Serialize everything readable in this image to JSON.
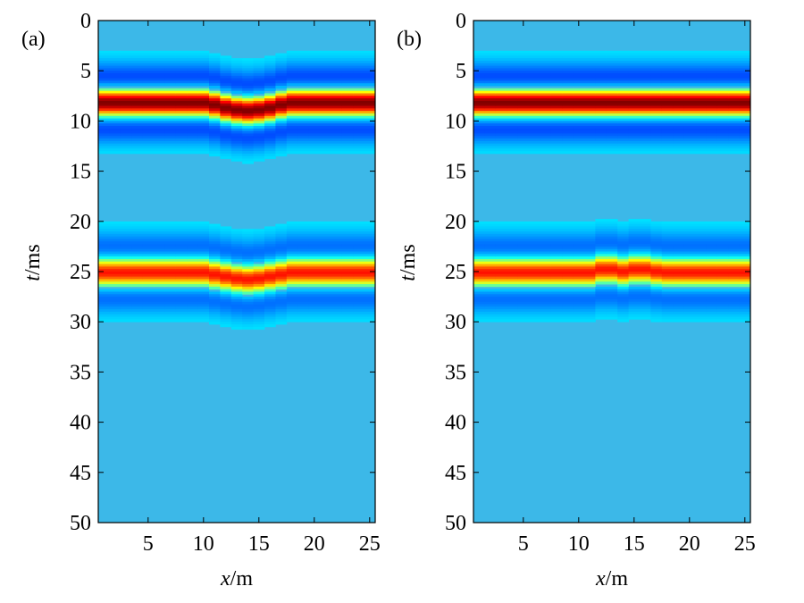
{
  "chart_data": [
    {
      "type": "heatmap",
      "panel_label": "(a)",
      "xlabel_italic": "x",
      "xlabel_unit": "/m",
      "ylabel_italic": "t",
      "ylabel_unit": "/ms",
      "xlim": [
        0.5,
        25.5
      ],
      "ylim": [
        0,
        50
      ],
      "y_reversed": true,
      "x_ticks": [
        5,
        10,
        15,
        20,
        25
      ],
      "y_ticks": [
        0,
        5,
        10,
        15,
        20,
        25,
        30,
        35,
        40,
        45,
        50
      ],
      "colormap": "jet",
      "background_color": "#3cb8e8",
      "x_traces": [
        1,
        2,
        3,
        4,
        5,
        6,
        7,
        8,
        9,
        10,
        11,
        12,
        13,
        14,
        15,
        16,
        17,
        18,
        19,
        20,
        21,
        22,
        23,
        24,
        25
      ],
      "events": [
        {
          "name": "reflection-1",
          "center_ms": [
            8.2,
            8.2,
            8.2,
            8.2,
            8.2,
            8.2,
            8.2,
            8.2,
            8.2,
            8.2,
            8.4,
            8.7,
            8.9,
            9.0,
            8.9,
            8.7,
            8.4,
            8.2,
            8.2,
            8.2,
            8.2,
            8.2,
            8.2,
            8.2,
            8.2
          ],
          "peak_amplitude": 1.0,
          "halfwidth_ms": 2.2
        },
        {
          "name": "reflection-2",
          "center_ms": [
            25.1,
            25.1,
            25.1,
            25.1,
            25.1,
            25.1,
            25.1,
            25.1,
            25.1,
            25.1,
            25.3,
            25.5,
            25.7,
            25.8,
            25.7,
            25.5,
            25.3,
            25.1,
            25.1,
            25.1,
            25.1,
            25.1,
            25.1,
            25.1,
            25.1
          ],
          "peak_amplitude": 0.78,
          "halfwidth_ms": 2.2
        }
      ]
    },
    {
      "type": "heatmap",
      "panel_label": "(b)",
      "xlabel_italic": "x",
      "xlabel_unit": "/m",
      "ylabel_italic": "t",
      "ylabel_unit": "/ms",
      "xlim": [
        0.5,
        25.5
      ],
      "ylim": [
        0,
        50
      ],
      "y_reversed": true,
      "x_ticks": [
        5,
        10,
        15,
        20,
        25
      ],
      "y_ticks": [
        0,
        5,
        10,
        15,
        20,
        25,
        30,
        35,
        40,
        45,
        50
      ],
      "colormap": "jet",
      "background_color": "#3cb8e8",
      "x_traces": [
        1,
        2,
        3,
        4,
        5,
        6,
        7,
        8,
        9,
        10,
        11,
        12,
        13,
        14,
        15,
        16,
        17,
        18,
        19,
        20,
        21,
        22,
        23,
        24,
        25
      ],
      "events": [
        {
          "name": "reflection-1",
          "center_ms": [
            8.2,
            8.2,
            8.2,
            8.2,
            8.2,
            8.2,
            8.2,
            8.2,
            8.2,
            8.2,
            8.2,
            8.2,
            8.2,
            8.2,
            8.2,
            8.2,
            8.2,
            8.2,
            8.2,
            8.2,
            8.2,
            8.2,
            8.2,
            8.2,
            8.2
          ],
          "peak_amplitude": 1.0,
          "halfwidth_ms": 2.2
        },
        {
          "name": "reflection-2",
          "center_ms": [
            25.1,
            25.1,
            25.1,
            25.1,
            25.1,
            25.1,
            25.1,
            25.1,
            25.1,
            25.1,
            25.1,
            24.8,
            24.8,
            25.0,
            24.8,
            24.8,
            25.0,
            25.1,
            25.1,
            25.1,
            25.1,
            25.1,
            25.1,
            25.1,
            25.1
          ],
          "peak_amplitude": 0.78,
          "halfwidth_ms": 2.2
        }
      ]
    }
  ]
}
